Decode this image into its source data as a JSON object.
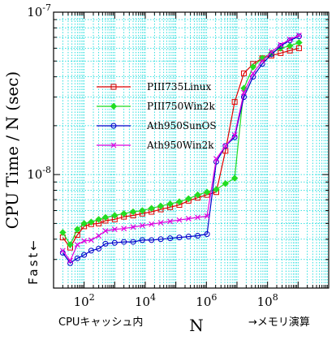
{
  "chart_data": {
    "type": "line",
    "xscale": "log",
    "yscale": "log",
    "xlim": [
      10,
      10000000000
    ],
    "ylim": [
      2e-09,
      1e-07
    ],
    "xlabel": "N",
    "ylabel": "CPU Time / N (sec)",
    "x_tick_labels": [
      "10^2",
      "10^4",
      "10^6",
      "10^8"
    ],
    "y_tick_labels": [
      "10^-8",
      "10^-7"
    ],
    "grid": true,
    "grid_color": "#00d8d8",
    "legend_position": "upper-left",
    "annotations": {
      "cache": "CPUキャッシュ内",
      "memory": "→メモリ演算",
      "fast": "Fast←"
    },
    "x": [
      20,
      35,
      60,
      100,
      170,
      300,
      500,
      1000,
      2000,
      4000,
      8000,
      16000,
      32000,
      65000,
      130000,
      260000,
      520000,
      1050000,
      2100000,
      4200000,
      8400000,
      16800000,
      33500000,
      67000000,
      134000000,
      268000000,
      537000000,
      1070000000
    ],
    "series": [
      {
        "name": "PIII735Linux",
        "color": "#e00000",
        "marker": "square",
        "values": [
          4.1e-09,
          3.55e-09,
          4.25e-09,
          4.8e-09,
          4.95e-09,
          5e-09,
          5.2e-09,
          5.3e-09,
          5.5e-09,
          5.6e-09,
          5.75e-09,
          5.9e-09,
          6.1e-09,
          6.3e-09,
          6.5e-09,
          6.9e-09,
          7.2e-09,
          7.5e-09,
          7.8e-09,
          1.4e-08,
          2.8e-08,
          4.2e-08,
          4.8e-08,
          5.2e-08,
          5.4e-08,
          5.6e-08,
          5.8e-08,
          6e-08
        ]
      },
      {
        "name": "PIII750Win2k",
        "color": "#22dd22",
        "marker": "diamond",
        "values": [
          4.4e-09,
          3.7e-09,
          4.6e-09,
          5e-09,
          5.1e-09,
          5.3e-09,
          5.45e-09,
          5.6e-09,
          5.75e-09,
          5.9e-09,
          6e-09,
          6.2e-09,
          6.4e-09,
          6.6e-09,
          6.8e-09,
          7.1e-09,
          7.5e-09,
          7.8e-09,
          8.1e-09,
          8.8e-09,
          9.5e-09,
          3.4e-08,
          4.6e-08,
          5.2e-08,
          5.6e-08,
          6e-08,
          6.2e-08,
          6.5e-08
        ]
      },
      {
        "name": "Ath950SunOS",
        "color": "#0000cc",
        "marker": "circle",
        "values": [
          3.3e-09,
          2.85e-09,
          3.05e-09,
          3.2e-09,
          3.4e-09,
          3.5e-09,
          3.75e-09,
          3.8e-09,
          3.85e-09,
          3.85e-09,
          3.95e-09,
          3.95e-09,
          4e-09,
          4.05e-09,
          4.1e-09,
          4.15e-09,
          4.2e-09,
          4.3e-09,
          1.2e-08,
          1.5e-08,
          1.7e-08,
          3e-08,
          4e-08,
          4.8e-08,
          5.5e-08,
          6.2e-08,
          6.7e-08,
          7.1e-08
        ]
      },
      {
        "name": "Ath950Win2k",
        "color": "#e000e0",
        "marker": "x",
        "values": [
          3.4e-09,
          2.95e-09,
          3.7e-09,
          3.9e-09,
          3.95e-09,
          4.2e-09,
          4.5e-09,
          4.6e-09,
          4.65e-09,
          4.75e-09,
          4.85e-09,
          4.95e-09,
          5.05e-09,
          5.15e-09,
          5.25e-09,
          5.35e-09,
          5.45e-09,
          5.55e-09,
          1.25e-08,
          1.5e-08,
          1.75e-08,
          3.2e-08,
          4.2e-08,
          5e-08,
          5.7e-08,
          6.3e-08,
          6.8e-08,
          7.2e-08
        ]
      }
    ]
  }
}
